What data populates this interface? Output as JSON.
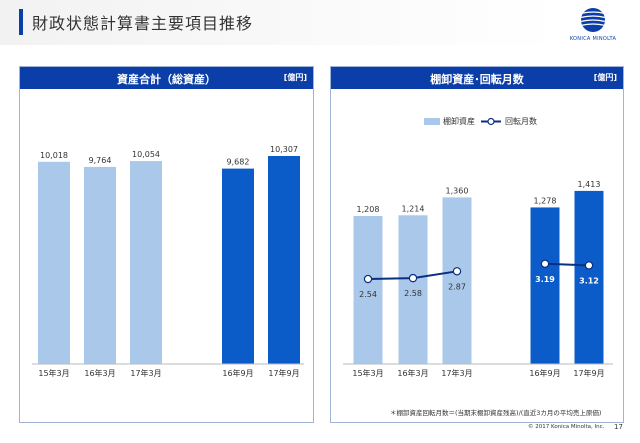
{
  "header": {
    "title": "財政状態計算書主要項目推移",
    "logo_text": "KONICA MINOLTA"
  },
  "footer": {
    "footnote": "＊棚卸資産回転月数＝(当期末棚卸資産残高)/(直近3カ月の平均売上原価)",
    "copyright": "© 2017 Konica Minolta, Inc.",
    "page_number": "17"
  },
  "colors": {
    "brand": "#0b3ea8",
    "light_bar": "#a9c8ea",
    "dark_bar": "#0b5cc8",
    "line": "#0b2f80"
  },
  "chart_data": [
    {
      "type": "bar",
      "title": "資産合計（総資産）",
      "unit": "[億円]",
      "categories": [
        "15年3月",
        "16年3月",
        "17年3月",
        "16年9月",
        "17年9月"
      ],
      "values": [
        10018,
        9764,
        10054,
        9682,
        10307
      ],
      "value_labels": [
        "10,018",
        "9,764",
        "10,054",
        "9,682",
        "10,307"
      ],
      "highlight": [
        false,
        false,
        false,
        true,
        true
      ],
      "ylim": [
        0,
        11000
      ]
    },
    {
      "type": "bar",
      "title": "棚卸資産･回転月数",
      "unit": "[億円]",
      "categories": [
        "15年3月",
        "16年3月",
        "17年3月",
        "16年9月",
        "17年9月"
      ],
      "legend": [
        "棚卸資産",
        "回転月数"
      ],
      "legend_position": "top",
      "series": [
        {
          "name": "棚卸資産",
          "type": "bar",
          "values": [
            1208,
            1214,
            1360,
            1278,
            1413
          ],
          "value_labels": [
            "1,208",
            "1,214",
            "1,360",
            "1,278",
            "1,413"
          ]
        },
        {
          "name": "回転月数",
          "type": "line",
          "values": [
            2.54,
            2.58,
            2.87,
            3.19,
            3.12
          ],
          "value_labels": [
            "2.54",
            "2.58",
            "2.87",
            "3.19",
            "3.12"
          ]
        }
      ],
      "highlight": [
        false,
        false,
        false,
        true,
        true
      ],
      "ylim": [
        0,
        1600
      ],
      "y2lim": [
        0,
        6
      ]
    }
  ]
}
